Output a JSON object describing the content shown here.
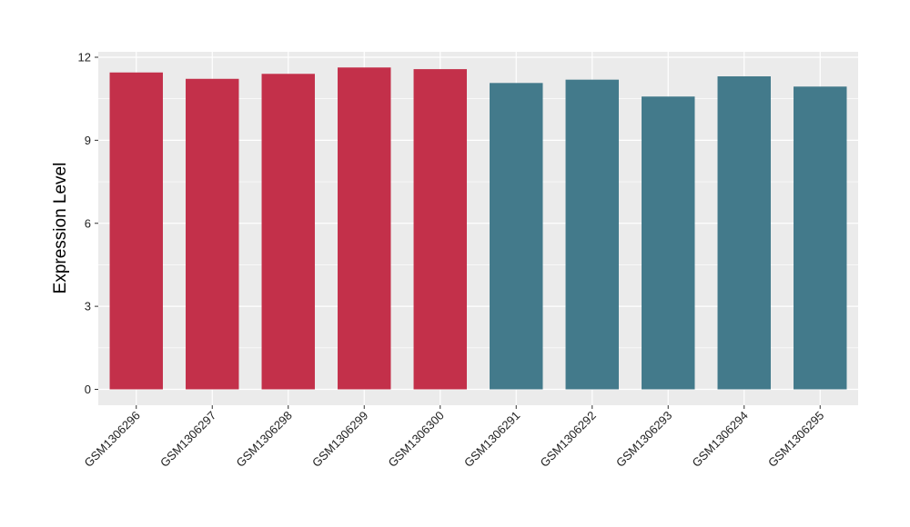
{
  "chart_data": {
    "type": "bar",
    "title": "",
    "xlabel": "",
    "ylabel": "Expression Level",
    "ylim": [
      0,
      12
    ],
    "yticks": [
      "0",
      "3",
      "6",
      "9",
      "12"
    ],
    "grid": true,
    "categories": [
      "GSM1306296",
      "GSM1306297",
      "GSM1306298",
      "GSM1306299",
      "GSM1306300",
      "GSM1306291",
      "GSM1306292",
      "GSM1306293",
      "GSM1306294",
      "GSM1306295"
    ],
    "values": [
      11.45,
      11.22,
      11.4,
      11.63,
      11.57,
      11.07,
      11.19,
      10.58,
      11.31,
      10.94
    ],
    "colors": [
      "#c3304a",
      "#c3304a",
      "#c3304a",
      "#c3304a",
      "#c3304a",
      "#437a8b",
      "#437a8b",
      "#437a8b",
      "#437a8b",
      "#437a8b"
    ],
    "panel_background": "#ebebeb",
    "gridline_color": "#ffffff"
  }
}
